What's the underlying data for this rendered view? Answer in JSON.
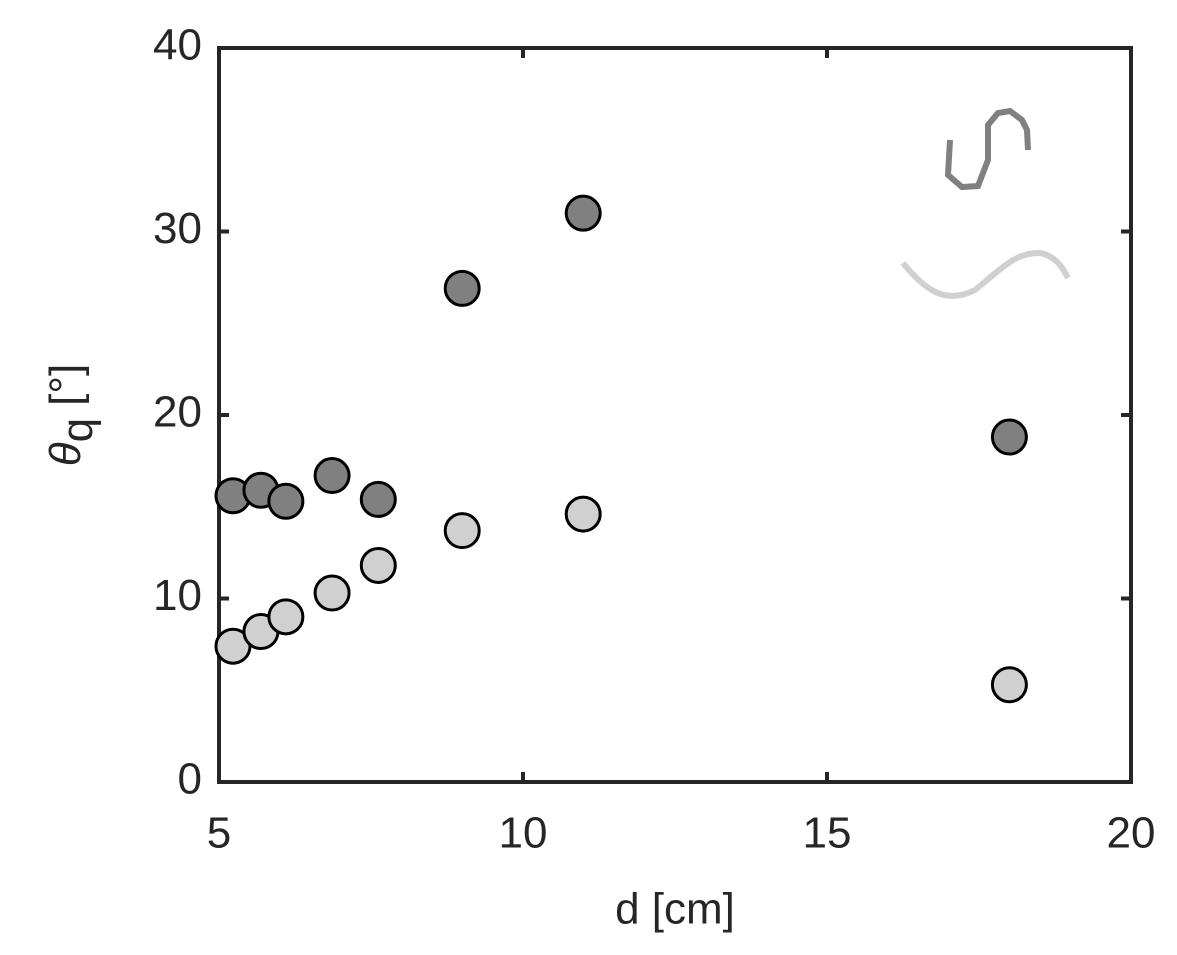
{
  "chart_data": {
    "type": "scatter",
    "xlabel": "d [cm]",
    "ylabel_symbol": "θ",
    "ylabel_subscript": "q",
    "ylabel_unit": "[°]",
    "xlim": [
      5,
      20
    ],
    "xticks": [
      5,
      10,
      15,
      20
    ],
    "ylim": [
      0,
      40
    ],
    "yticks": [
      0,
      10,
      20,
      30,
      40
    ],
    "series": [
      {
        "color": "#808080",
        "x": [
          5.23,
          5.69,
          6.1,
          6.86,
          7.62,
          9.0,
          10.99,
          18.0
        ],
        "values": [
          15.6,
          15.9,
          15.3,
          16.7,
          15.4,
          26.9,
          31.0,
          18.8
        ]
      },
      {
        "color": "#d0d0d0",
        "x": [
          5.23,
          5.69,
          6.1,
          6.86,
          7.62,
          9.0,
          10.99,
          18.0
        ],
        "values": [
          7.4,
          8.2,
          9.0,
          10.3,
          11.8,
          13.7,
          14.6,
          5.3
        ]
      }
    ]
  }
}
